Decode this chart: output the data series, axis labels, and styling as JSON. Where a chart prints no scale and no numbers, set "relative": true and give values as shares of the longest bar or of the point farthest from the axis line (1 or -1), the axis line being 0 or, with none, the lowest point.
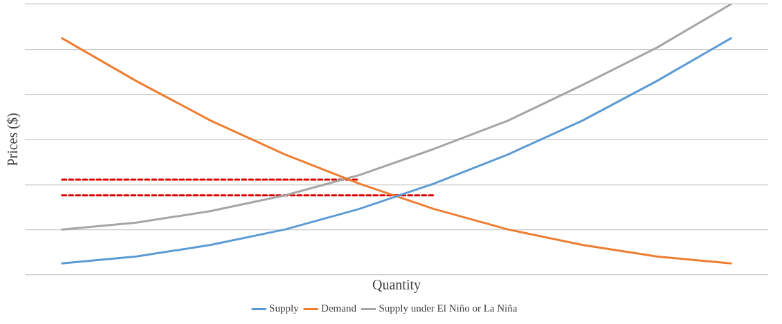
{
  "chart_data": {
    "type": "line",
    "relative": true,
    "xlabel": "Quantity",
    "ylabel": "Prices ($)",
    "categories": [
      null,
      null,
      null,
      null,
      null,
      null,
      null,
      null,
      null,
      null
    ],
    "series": [
      {
        "name": "Supply",
        "color": "#5b9bd5",
        "values": [
          0.043,
          0.068,
          0.111,
          0.168,
          0.244,
          0.337,
          0.445,
          0.57,
          0.716,
          0.874
        ]
      },
      {
        "name": "Demand",
        "color": "#ed7d31",
        "values": [
          0.874,
          0.716,
          0.57,
          0.445,
          0.337,
          0.244,
          0.168,
          0.111,
          0.068,
          0.043
        ]
      },
      {
        "name": "Supply under El Niño or La Niña",
        "color": "#a5a5a5",
        "values": [
          0.168,
          0.193,
          0.236,
          0.294,
          0.369,
          0.465,
          0.57,
          0.701,
          0.839,
          1
        ]
      },
      {
        "color": "#e00000",
        "line_style": "dashed",
        "values": [
          0.352,
          0.352,
          0.352,
          0.352,
          0.352,
          null,
          null,
          null,
          null,
          null
        ]
      },
      {
        "color": "#e00000",
        "line_style": "dashed",
        "values": [
          0.294,
          0.294,
          0.294,
          0.294,
          0.294,
          0.294,
          null,
          null,
          null,
          null
        ]
      }
    ],
    "grid": "y",
    "legend": "bottom",
    "marker": "none"
  }
}
